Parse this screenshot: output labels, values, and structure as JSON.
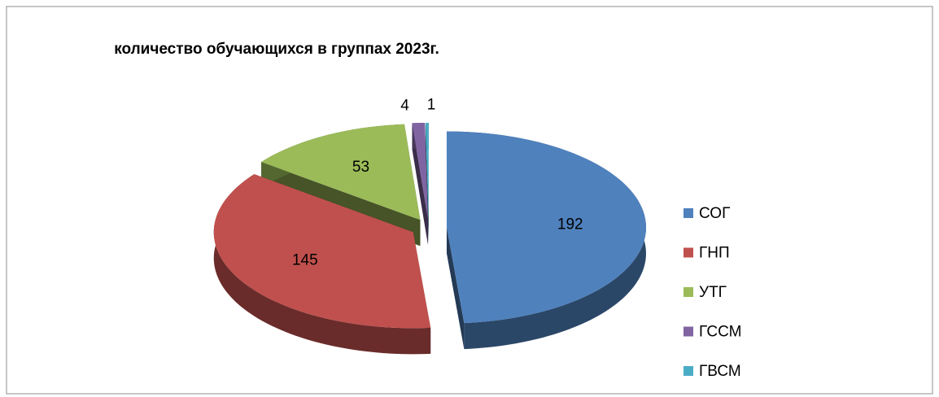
{
  "chart_data": {
    "type": "pie",
    "title": "количество обучающихся в группах 2023г.",
    "categories": [
      "СОГ",
      "ГНП",
      "УТГ",
      "ГССМ",
      "ГВСМ"
    ],
    "values": [
      192,
      145,
      53,
      4,
      1
    ],
    "colors": [
      "#4f81bd",
      "#c0504d",
      "#9bbb59",
      "#8064a2",
      "#4bacc6"
    ],
    "legend": "right",
    "three_d": true,
    "exploded": true
  }
}
